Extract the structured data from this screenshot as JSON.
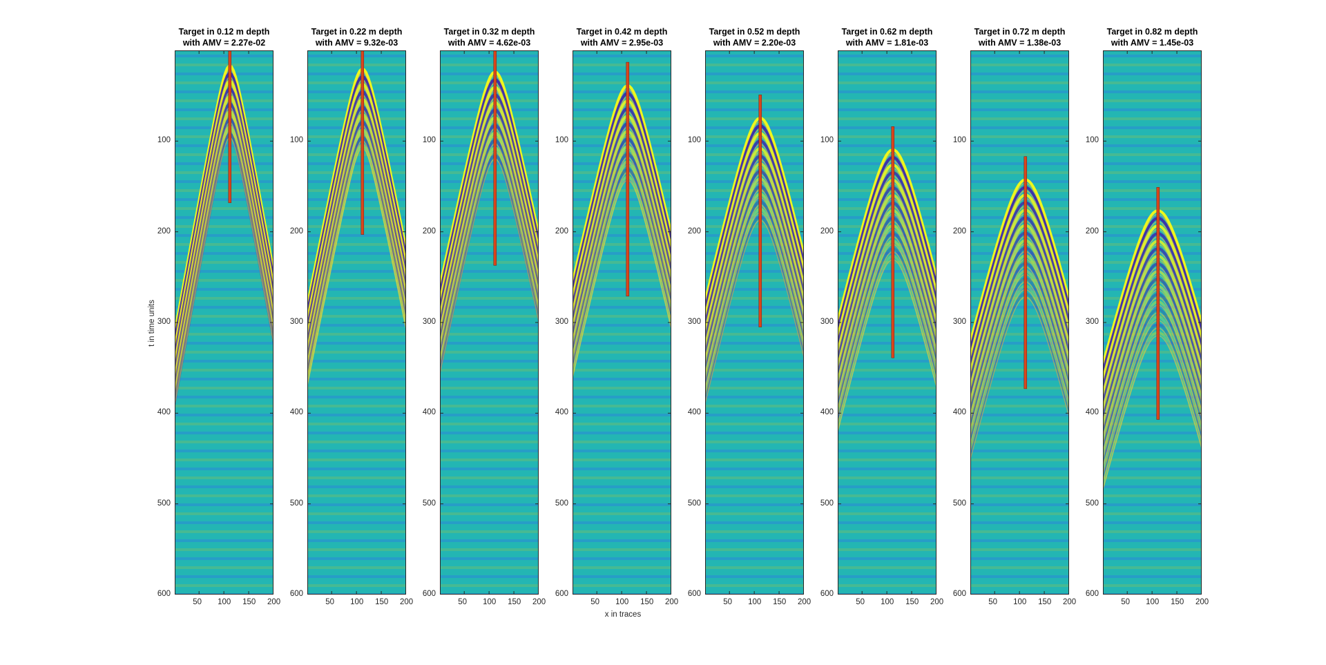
{
  "chart_data": {
    "type": "heatmap",
    "xlabel": "x in traces",
    "ylabel": "t in time units",
    "xlim": [
      1,
      200
    ],
    "ylim": [
      0,
      600
    ],
    "y_reversed": true,
    "xticks": [
      50,
      100,
      150,
      200
    ],
    "yticks": [
      100,
      200,
      300,
      400,
      500,
      600
    ],
    "colormap": [
      "#3e26a8",
      "#2f6fee",
      "#13a8d4",
      "#2ab3a4",
      "#89c258",
      "#fcc13a",
      "#f9fb15"
    ],
    "background_color": "#23b6b3",
    "marker_color": "#d9461c",
    "panels": [
      {
        "title_line1": "Target in 0.12 m depth",
        "title_line2": "with AMV = 2.27e-02",
        "target_x": 112,
        "target_t_start": 0,
        "target_t_end": 168
      },
      {
        "title_line1": "Target in 0.22 m depth",
        "title_line2": "with AMV = 9.32e-03",
        "target_x": 112,
        "target_t_start": 0,
        "target_t_end": 203
      },
      {
        "title_line1": "Target in 0.32 m depth",
        "title_line2": "with AMV = 4.62e-03",
        "target_x": 112,
        "target_t_start": 0,
        "target_t_end": 237
      },
      {
        "title_line1": "Target in 0.42 m depth",
        "title_line2": "with AMV = 2.95e-03",
        "target_x": 112,
        "target_t_start": 13,
        "target_t_end": 271
      },
      {
        "title_line1": "Target in 0.52 m depth",
        "title_line2": "with AMV = 2.20e-03",
        "target_x": 112,
        "target_t_start": 49,
        "target_t_end": 305
      },
      {
        "title_line1": "Target in 0.62 m depth",
        "title_line2": "with AMV = 1.81e-03",
        "target_x": 112,
        "target_t_start": 84,
        "target_t_end": 339
      },
      {
        "title_line1": "Target in 0.72 m depth",
        "title_line2": "with AMV = 1.38e-03",
        "target_x": 112,
        "target_t_start": 117,
        "target_t_end": 373
      },
      {
        "title_line1": "Target in 0.82 m depth",
        "title_line2": "with AMV = 1.45e-03",
        "target_x": 112,
        "target_t_start": 151,
        "target_t_end": 407
      }
    ]
  }
}
